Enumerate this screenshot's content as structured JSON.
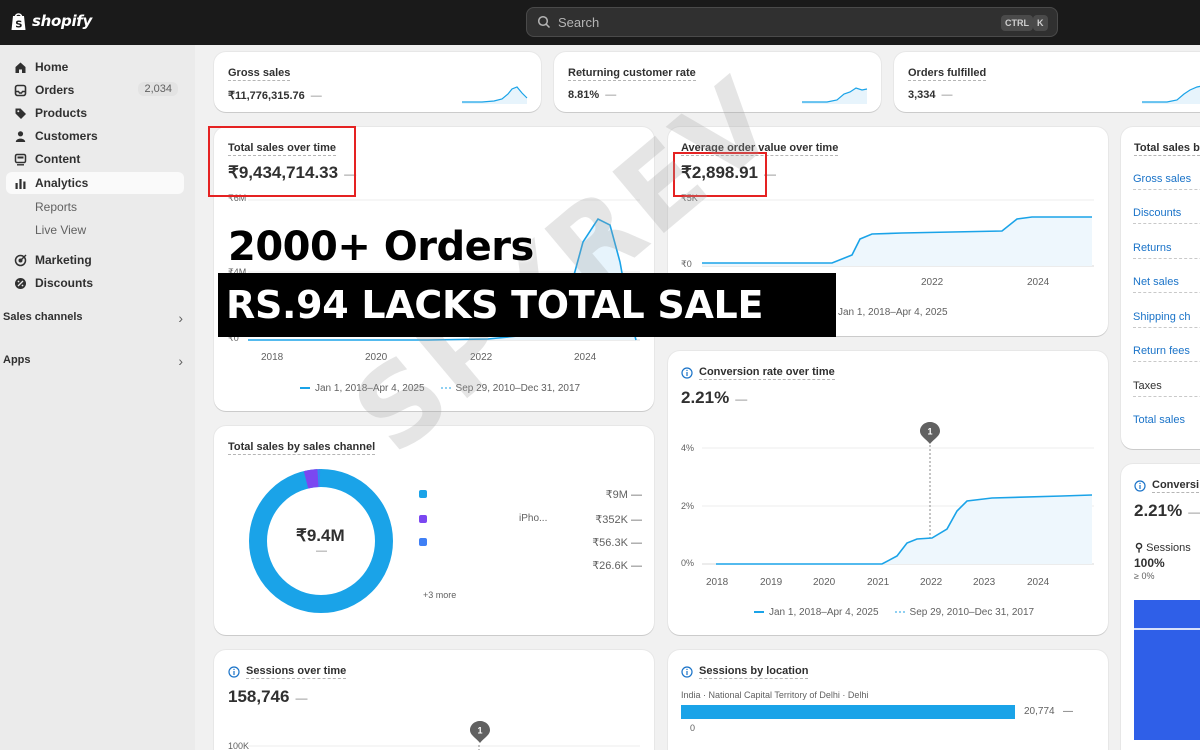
{
  "app": {
    "brand": "shopify"
  },
  "search": {
    "placeholder": "Search",
    "shortcut_ctrl": "CTRL",
    "shortcut_key": "K"
  },
  "sidebar": {
    "items": [
      {
        "label": "Home",
        "icon": "home-icon"
      },
      {
        "label": "Orders",
        "icon": "inbox-icon",
        "count": "2,034"
      },
      {
        "label": "Products",
        "icon": "tag-icon"
      },
      {
        "label": "Customers",
        "icon": "person-icon"
      },
      {
        "label": "Content",
        "icon": "content-icon"
      },
      {
        "label": "Analytics",
        "icon": "bar-chart-icon",
        "active": true
      },
      {
        "label": "Reports",
        "sub": true
      },
      {
        "label": "Live View",
        "sub": true
      },
      {
        "label": "Marketing",
        "icon": "target-icon"
      },
      {
        "label": "Discounts",
        "icon": "discount-icon"
      }
    ],
    "sections": [
      {
        "label": "Sales channels"
      },
      {
        "label": "Apps"
      }
    ]
  },
  "metrics": [
    {
      "title": "Gross sales",
      "value": "₹11,776,315.76",
      "trend": "—"
    },
    {
      "title": "Returning customer rate",
      "value": "8.81%",
      "trend": "—"
    },
    {
      "title": "Orders fulfilled",
      "value": "3,334",
      "trend": "—"
    }
  ],
  "total_sales": {
    "title": "Total sales over time",
    "value": "₹9,434,714.33",
    "trend": "—",
    "y_ticks": [
      "₹6M",
      "₹4M",
      "₹0"
    ],
    "x_ticks": [
      "2018",
      "2020",
      "2022",
      "2024"
    ],
    "legend_current": "Jan 1, 2018–Apr 4, 2025",
    "legend_previous": "Sep 29, 2010–Dec 31, 2017"
  },
  "aov": {
    "title": "Average order value over time",
    "value": "₹2,898.91",
    "trend": "—",
    "y_ticks": [
      "₹5K",
      "₹0"
    ],
    "x_ticks": [
      "2022",
      "2024"
    ],
    "legend_current": "Jan 1, 2018–Apr 4, 2025"
  },
  "conversion": {
    "title": "Conversion rate over time",
    "value": "2.21%",
    "trend": "—",
    "annotation": "1",
    "y_ticks": [
      "4%",
      "2%",
      "0%"
    ],
    "x_ticks": [
      "2018",
      "2019",
      "2020",
      "2021",
      "2022",
      "2023",
      "2024"
    ],
    "legend_current": "Jan 1, 2018–Apr 4, 2025",
    "legend_previous": "Sep 29, 2010–Dec 31, 2017"
  },
  "sales_channel": {
    "title": "Total sales by sales channel",
    "center_value": "₹9.4M",
    "center_trend": "—",
    "rows": [
      {
        "label": "",
        "value": "₹9M",
        "trend": "—",
        "color": "#1aa3e8"
      },
      {
        "label": "iPho...",
        "value": "₹352K",
        "trend": "—",
        "color": "#7b47f1"
      },
      {
        "label": "",
        "value": "₹56.3K",
        "trend": "—",
        "color": "#3f7ff5"
      },
      {
        "label": "",
        "value": "₹26.6K",
        "trend": "—",
        "color": "#dfe9f5"
      }
    ],
    "more": "+3 more"
  },
  "sessions": {
    "title": "Sessions over time",
    "value": "158,746",
    "trend": "—",
    "annotation": "1",
    "y_tick": "100K"
  },
  "sessions_location": {
    "title": "Sessions by location",
    "location": "India · National Capital Territory of Delhi · Delhi",
    "value": "20,774",
    "trend": "—",
    "axis_zero": "0"
  },
  "right_panel": {
    "title": "Total sales b",
    "items": [
      {
        "label": "Gross sales",
        "link": true
      },
      {
        "label": "Discounts",
        "link": true
      },
      {
        "label": "Returns",
        "link": true
      },
      {
        "label": "Net sales",
        "link": true
      },
      {
        "label": "Shipping ch",
        "link": true
      },
      {
        "label": "Return fees",
        "link": true
      },
      {
        "label": "Taxes",
        "link": false
      },
      {
        "label": "Total sales",
        "link": true
      }
    ],
    "conversion_title": "Conversi",
    "conversion_value": "2.21%",
    "conversion_trend": "—",
    "sessions_label": "Sessions",
    "sessions_pct": "100%",
    "sessions_delta": "≥ 0%"
  },
  "overlay": {
    "headline": "2000+ Orders",
    "banner": "RS.94 LACKS TOTAL SALE",
    "watermark": "SPYREV"
  },
  "colors": {
    "accent": "#1aa3e8",
    "highlight": "#e52222",
    "topbar": "#1a1a1a"
  }
}
